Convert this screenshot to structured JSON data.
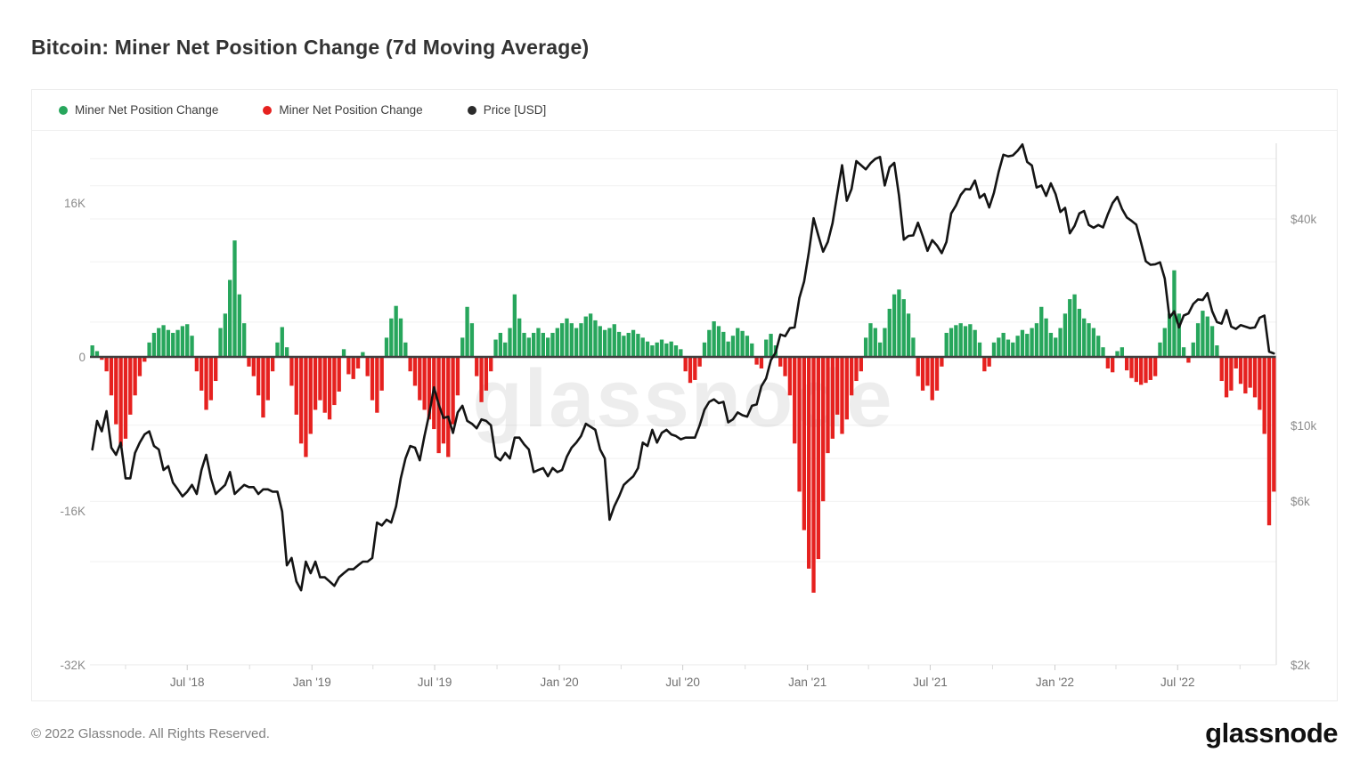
{
  "header": {
    "title": "Bitcoin: Miner Net Position Change (7d Moving Average)"
  },
  "legend": {
    "items": [
      {
        "label": "Miner Net Position Change",
        "color": "#27a65c",
        "series": "positive-bars"
      },
      {
        "label": "Miner Net Position Change",
        "color": "#e6211f",
        "series": "negative-bars"
      },
      {
        "label": "Price [USD]",
        "color": "#2b2b2b",
        "series": "price-line"
      }
    ]
  },
  "watermark": {
    "text": "glassnode",
    "color_opacity": 0.07
  },
  "footer": {
    "copyright": "© 2022 Glassnode. All Rights Reserved.",
    "logo_text": "glassnode"
  },
  "colors": {
    "bar_positive": "#27a65c",
    "bar_negative": "#e6211f",
    "price_line": "#141414",
    "grid": "#f1f1f1",
    "axis_text": "#8c8c8c",
    "x_axis_text": "#6f6f6f",
    "zero_baseline": "#3f3f3f",
    "plot_right_border": "#d9d9d9",
    "tick_mark": "#cccccc"
  },
  "chart_data": {
    "type": "bar",
    "title": "Bitcoin: Miner Net Position Change (7d Moving Average)",
    "x_start": "2018-02-11",
    "x_step_days": 7,
    "n_points": 250,
    "left_axis": {
      "title": "",
      "tick_labels": [
        "16K",
        "0",
        "-16K",
        "-32K"
      ],
      "tick_values_btc": [
        16000,
        0,
        -16000,
        -32000
      ],
      "unit": "BTC"
    },
    "right_axis": {
      "title": "",
      "tick_labels": [
        "$40k",
        "$10k",
        "$6k",
        "$2k"
      ],
      "tick_values_usd": [
        40000,
        10000,
        6000,
        2000
      ],
      "scale": "log",
      "grid_values_usd": [
        60000,
        50000,
        40000,
        30000,
        20000,
        10000,
        8000,
        6000,
        4000,
        2000
      ]
    },
    "x_ticks": [
      {
        "date": "2018-07-01",
        "label": "Jul '18"
      },
      {
        "date": "2019-01-01",
        "label": "Jan '19"
      },
      {
        "date": "2019-07-01",
        "label": "Jul '19"
      },
      {
        "date": "2020-01-01",
        "label": "Jan '20"
      },
      {
        "date": "2020-07-01",
        "label": "Jul '20"
      },
      {
        "date": "2021-01-01",
        "label": "Jan '21"
      },
      {
        "date": "2021-07-01",
        "label": "Jul '21"
      },
      {
        "date": "2022-01-01",
        "label": "Jan '22"
      },
      {
        "date": "2022-07-01",
        "label": "Jul '22"
      }
    ],
    "x_minor_ticks": [
      "2018-04-01",
      "2018-10-01",
      "2019-04-01",
      "2019-10-01",
      "2020-04-01",
      "2020-10-01",
      "2021-04-01",
      "2021-10-01",
      "2022-04-01",
      "2022-10-01"
    ],
    "series": [
      {
        "name": "Miner Net Position Change",
        "type": "bar",
        "axis": "left",
        "values_key": "net_position_change_k_btc",
        "positive_color": "#27a65c",
        "negative_color": "#e6211f"
      },
      {
        "name": "Price [USD]",
        "type": "line",
        "axis": "right",
        "values_key": "price_usd",
        "color": "#141414"
      }
    ],
    "net_position_change_k_btc": [
      1.2,
      0.6,
      -0.3,
      -1.5,
      -4,
      -7,
      -9.3,
      -8.5,
      -6,
      -4,
      -2,
      -0.5,
      1.5,
      2.5,
      3,
      3.3,
      2.8,
      2.5,
      2.8,
      3.2,
      3.4,
      2.2,
      -1.5,
      -3.5,
      -5.5,
      -4.5,
      -2.5,
      3,
      4.5,
      8,
      12.1,
      6.5,
      3.5,
      -1,
      -2,
      -4,
      -6.3,
      -4.5,
      -1.5,
      1.5,
      3.1,
      1,
      -3,
      -6,
      -9,
      -10.4,
      -8,
      -5.5,
      -4.5,
      -5.8,
      -6.5,
      -5,
      -3.6,
      0.8,
      -1.8,
      -2.3,
      -1.2,
      0.5,
      -2,
      -4.5,
      -5.8,
      -3.5,
      2,
      4,
      5.3,
      4,
      1.5,
      -1.5,
      -3,
      -4.5,
      -5.5,
      -6.5,
      -7.5,
      -10,
      -9,
      -10.4,
      -7,
      -4,
      2,
      5.2,
      3.5,
      -2,
      -4.7,
      -3.5,
      -1.5,
      1.8,
      2.5,
      1.5,
      3,
      6.5,
      4,
      2.5,
      2,
      2.5,
      3,
      2.5,
      2,
      2.5,
      3,
      3.5,
      4,
      3.5,
      3,
      3.5,
      4.2,
      4.5,
      3.8,
      3.2,
      2.8,
      3,
      3.4,
      2.6,
      2.2,
      2.5,
      2.8,
      2.4,
      2,
      1.6,
      1.2,
      1.5,
      1.8,
      1.4,
      1.6,
      1.2,
      0.8,
      -1.5,
      -2.7,
      -2.4,
      -1,
      1.5,
      2.8,
      3.7,
      3.2,
      2.6,
      1.6,
      2.2,
      3,
      2.7,
      2.2,
      1.4,
      -0.8,
      -1.2,
      1.8,
      2.4,
      1.2,
      -1,
      -2,
      -4,
      -9,
      -14,
      -18,
      -22,
      -24.5,
      -21,
      -15,
      -10,
      -8.5,
      -6,
      -8,
      -6.5,
      -4,
      -2.5,
      -1.5,
      2,
      3.5,
      3,
      1.5,
      3,
      5,
      6.5,
      7,
      6,
      4.5,
      2,
      -2,
      -3.5,
      -3,
      -4.5,
      -3.5,
      -1,
      2.5,
      3,
      3.3,
      3.5,
      3.2,
      3.4,
      2.8,
      1.5,
      -1.5,
      -1,
      1.5,
      2,
      2.5,
      1.8,
      1.5,
      2.2,
      2.8,
      2.4,
      3,
      3.5,
      5.2,
      4,
      2.5,
      2,
      3,
      4.5,
      6,
      6.5,
      5,
      4,
      3.5,
      3,
      2.2,
      1,
      -1.2,
      -1.6,
      0.6,
      1,
      -1.4,
      -2.2,
      -2.6,
      -2.9,
      -2.7,
      -2.4,
      -2,
      1.5,
      3,
      4.5,
      9,
      4.5,
      1,
      -0.6,
      1.5,
      3.5,
      4.8,
      4.2,
      3.2,
      1.2,
      -2.5,
      -4.2,
      -3.5,
      -1.2,
      -2.8,
      -3.8,
      -3.2,
      -4.2,
      -5.5,
      -8,
      -17.5,
      -14
    ],
    "price_usd": [
      8500,
      10300,
      9600,
      11000,
      8600,
      8200,
      8900,
      7000,
      7000,
      8300,
      8900,
      9400,
      9600,
      8700,
      8500,
      7400,
      7600,
      6800,
      6500,
      6200,
      6400,
      6700,
      6300,
      7400,
      8200,
      7000,
      6300,
      6500,
      6700,
      7300,
      6300,
      6500,
      6700,
      6600,
      6600,
      6300,
      6500,
      6500,
      6400,
      6400,
      5600,
      3900,
      4100,
      3500,
      3300,
      4000,
      3700,
      4000,
      3600,
      3600,
      3500,
      3400,
      3600,
      3700,
      3800,
      3800,
      3900,
      4000,
      4000,
      4100,
      5200,
      5100,
      5300,
      5200,
      5800,
      7000,
      8000,
      8700,
      8600,
      7900,
      9300,
      10800,
      12900,
      11500,
      10500,
      10600,
      9500,
      10900,
      11400,
      10300,
      10100,
      9800,
      10400,
      10300,
      10000,
      8100,
      7900,
      8300,
      8000,
      9200,
      9200,
      8800,
      8500,
      7300,
      7400,
      7500,
      7100,
      7500,
      7300,
      7400,
      8100,
      8600,
      8900,
      9300,
      10100,
      9900,
      9700,
      8500,
      8000,
      5300,
      5800,
      6200,
      6700,
      6900,
      7100,
      7500,
      8900,
      8700,
      9700,
      8900,
      9500,
      9700,
      9400,
      9300,
      9100,
      9200,
      9200,
      9200,
      10000,
      11100,
      11700,
      11900,
      11600,
      11700,
      10200,
      10400,
      10900,
      10700,
      10600,
      11400,
      11500,
      13000,
      13700,
      15500,
      16300,
      18400,
      18200,
      19200,
      19300,
      23500,
      26300,
      32000,
      40200,
      35800,
      32100,
      34300,
      38900,
      47500,
      57400,
      45200,
      48900,
      59000,
      57400,
      55800,
      58200,
      59900,
      60700,
      50100,
      56600,
      58300,
      46800,
      34800,
      35700,
      35800,
      39000,
      35600,
      32300,
      34700,
      33500,
      31800,
      34300,
      41500,
      43800,
      47000,
      48900,
      48800,
      51800,
      46100,
      47300,
      43200,
      47700,
      54900,
      61600,
      60900,
      61300,
      63300,
      66000,
      58700,
      57300,
      49400,
      50100,
      46700,
      50800,
      47300,
      41900,
      43100,
      36300,
      38200,
      41500,
      42200,
      38400,
      37700,
      38400,
      37800,
      41300,
      44500,
      46400,
      42800,
      40400,
      39500,
      38500,
      34100,
      30100,
      29400,
      29500,
      29900,
      26800,
      20600,
      21500,
      19300,
      20900,
      21200,
      22600,
      23300,
      23200,
      24300,
      21500,
      20000,
      19800,
      21700,
      19400,
      19100,
      19600,
      19400,
      19200,
      19300,
      20600,
      20900,
      16400,
      16200
    ]
  }
}
